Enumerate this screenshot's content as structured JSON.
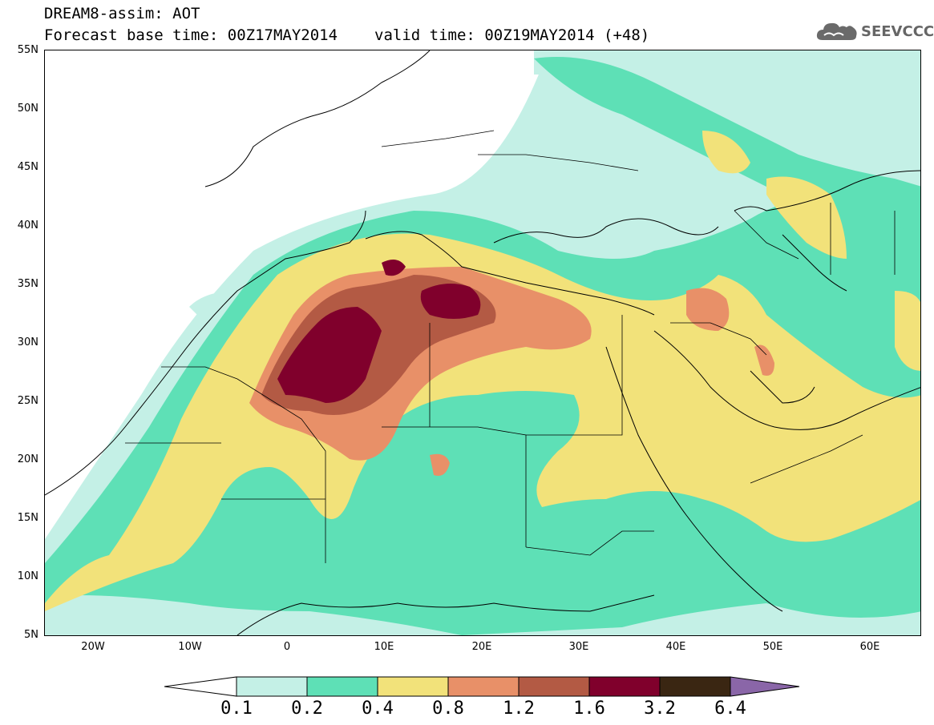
{
  "header": {
    "model_title": "DREAM8-assim: AOT",
    "base_time": "Forecast base time: 00Z17MAY2014",
    "valid_time": "valid time: 00Z19MAY2014 (+48)"
  },
  "logo": {
    "text": "SEEVCCC",
    "icon": "cloud-icon"
  },
  "map": {
    "lat_labels": [
      "55N",
      "50N",
      "45N",
      "40N",
      "35N",
      "30N",
      "25N",
      "20N",
      "15N",
      "10N",
      "5N"
    ],
    "lon_labels": [
      "20W",
      "10W",
      "0",
      "10E",
      "20E",
      "30E",
      "40E",
      "50E",
      "60E"
    ]
  },
  "colorbar": {
    "labels": [
      "0.1",
      "0.2",
      "0.4",
      "0.8",
      "1.2",
      "1.6",
      "3.2",
      "6.4"
    ],
    "colors": {
      "below": "#ffffff",
      "c1": "#c4f0e6",
      "c2": "#5ee0b6",
      "c3": "#f2e27a",
      "c4": "#e89068",
      "c5": "#b35a44",
      "c6": "#80002c",
      "c7": "#3a2612",
      "above": "#8a66a8"
    }
  }
}
